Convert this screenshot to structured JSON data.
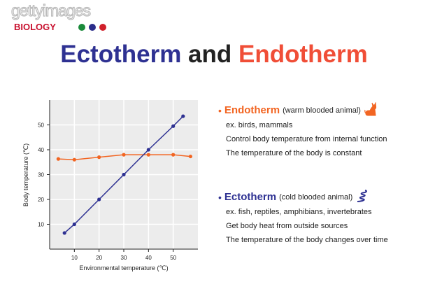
{
  "logo": {
    "watermark": "gettyimages",
    "brand": "BIOLOGY",
    "dot_colors": [
      "#1a8a3a",
      "#2b2d8a",
      "#d0202a"
    ]
  },
  "title": {
    "part1": "Ectotherm",
    "part2": " and ",
    "part3": "Endotherm",
    "color1": "#2e3192",
    "color2": "#222222",
    "color3": "#f04e37"
  },
  "chart_data": {
    "type": "line",
    "xlabel": "Environmental temperature (℃)",
    "ylabel": "Body temperature (℃)",
    "xlim": [
      0,
      60
    ],
    "ylim": [
      0,
      60
    ],
    "xticks": [
      10,
      20,
      30,
      40,
      50
    ],
    "yticks": [
      10,
      20,
      30,
      40,
      50
    ],
    "grid": true,
    "series": [
      {
        "key": "endotherm",
        "color": "#f26522",
        "x": [
          3.5,
          10,
          20,
          30,
          40,
          50,
          57
        ],
        "y": [
          36.3,
          36,
          37,
          38,
          38,
          38,
          37.3
        ]
      },
      {
        "key": "ectotherm",
        "color": "#2e3192",
        "x": [
          6,
          10,
          20,
          30,
          40,
          50,
          54
        ],
        "y": [
          6.5,
          10,
          20,
          30,
          40,
          49.5,
          53.5
        ]
      }
    ]
  },
  "endotherm": {
    "name": "Endotherm",
    "subtitle": "(warm blooded animal)",
    "icon": "cat-icon",
    "color": "#f26522",
    "lines": [
      "ex. birds, mammals",
      "Control body temperature from internal function",
      "The temperature of the body is constant"
    ]
  },
  "ectotherm": {
    "name": "Ectotherm",
    "subtitle": "(cold blooded animal)",
    "icon": "snake-icon",
    "color": "#2e3192",
    "lines": [
      "ex. fish, reptiles, amphibians, invertebrates",
      "Get body heat from outside sources",
      "The temperature of the body changes over time"
    ]
  }
}
